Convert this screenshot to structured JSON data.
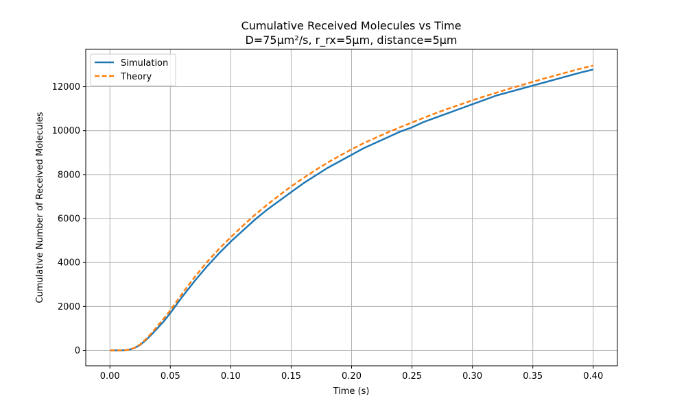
{
  "chart_data": {
    "type": "line",
    "title": "Cumulative Received Molecules vs Time",
    "subtitle": "D=75μm²/s, r_rx=5μm, distance=5μm",
    "xlabel": "Time (s)",
    "ylabel": "Cumulative Number of Received Molecules",
    "xlim": [
      -0.02,
      0.42
    ],
    "ylim": [
      -700,
      13700
    ],
    "xticks": [
      0.0,
      0.05,
      0.1,
      0.15,
      0.2,
      0.25,
      0.3,
      0.35,
      0.4
    ],
    "xtick_labels": [
      "0.00",
      "0.05",
      "0.10",
      "0.15",
      "0.20",
      "0.25",
      "0.30",
      "0.35",
      "0.40"
    ],
    "yticks": [
      0,
      2000,
      4000,
      6000,
      8000,
      10000,
      12000
    ],
    "ytick_labels": [
      "0",
      "2000",
      "4000",
      "6000",
      "8000",
      "10000",
      "12000"
    ],
    "grid": true,
    "legend_position": "top-left",
    "series": [
      {
        "name": "Simulation",
        "color": "#1f77b4",
        "style": "solid",
        "x": [
          0,
          0.01,
          0.015,
          0.02,
          0.025,
          0.03,
          0.035,
          0.04,
          0.045,
          0.05,
          0.06,
          0.07,
          0.08,
          0.09,
          0.1,
          0.11,
          0.12,
          0.13,
          0.14,
          0.15,
          0.16,
          0.17,
          0.18,
          0.19,
          0.2,
          0.21,
          0.22,
          0.23,
          0.24,
          0.25,
          0.26,
          0.27,
          0.28,
          0.29,
          0.3,
          0.31,
          0.32,
          0.33,
          0.34,
          0.35,
          0.36,
          0.37,
          0.38,
          0.39,
          0.4
        ],
        "y": [
          0,
          0,
          20,
          100,
          250,
          480,
          750,
          1050,
          1350,
          1700,
          2450,
          3150,
          3800,
          4400,
          4950,
          5450,
          5950,
          6400,
          6800,
          7200,
          7600,
          7950,
          8300,
          8600,
          8900,
          9200,
          9450,
          9700,
          9950,
          10150,
          10400,
          10600,
          10800,
          11000,
          11200,
          11400,
          11600,
          11750,
          11900,
          12050,
          12200,
          12350,
          12500,
          12650,
          12780
        ]
      },
      {
        "name": "Theory",
        "color": "#ff7f0e",
        "style": "dashed",
        "x": [
          0,
          0.01,
          0.015,
          0.02,
          0.025,
          0.03,
          0.035,
          0.04,
          0.045,
          0.05,
          0.06,
          0.07,
          0.08,
          0.09,
          0.1,
          0.11,
          0.12,
          0.13,
          0.14,
          0.15,
          0.16,
          0.17,
          0.18,
          0.19,
          0.2,
          0.21,
          0.22,
          0.23,
          0.24,
          0.25,
          0.26,
          0.27,
          0.28,
          0.29,
          0.3,
          0.31,
          0.32,
          0.33,
          0.34,
          0.35,
          0.36,
          0.37,
          0.38,
          0.39,
          0.4
        ],
        "y": [
          0,
          0,
          25,
          110,
          270,
          520,
          820,
          1150,
          1480,
          1820,
          2600,
          3330,
          4000,
          4600,
          5150,
          5670,
          6170,
          6620,
          7050,
          7460,
          7840,
          8200,
          8540,
          8850,
          9150,
          9430,
          9680,
          9920,
          10150,
          10370,
          10590,
          10800,
          11000,
          11190,
          11380,
          11560,
          11730,
          11900,
          12060,
          12220,
          12380,
          12530,
          12680,
          12830,
          12960
        ]
      }
    ]
  }
}
